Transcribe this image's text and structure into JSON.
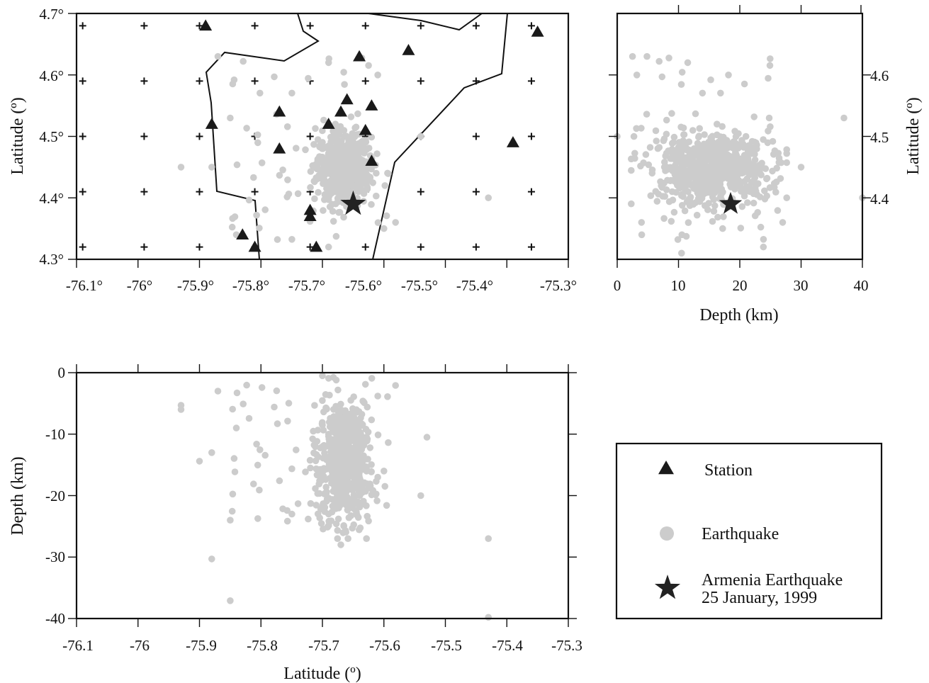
{
  "colors": {
    "quake": "#cccccc",
    "station": "#1a1a1a",
    "mainshock": "#222222",
    "line": "#111111"
  },
  "map_panel": {
    "x_ticks": [
      "-76.1°",
      "-76°",
      "-75.9°",
      "-75.8°",
      "-75.7°",
      "-75.6°",
      "-75.5°",
      "-75.4°",
      "-75.3°"
    ],
    "y_ticks": [
      "4.3°",
      "4.4°",
      "4.5°",
      "4.6°",
      "4.7°"
    ],
    "ylabel": "Latitude (º)"
  },
  "depth_lat_panel": {
    "x_ticks": [
      "0",
      "10",
      "20",
      "30",
      "40"
    ],
    "y_ticks": [
      "4.4",
      "4.5",
      "4.6"
    ],
    "xlabel": "Depth (km)",
    "ylabel": "Latitude (º)"
  },
  "lon_depth_panel": {
    "x_ticks": [
      "-76.1",
      "-76",
      "-75.9",
      "-75.8",
      "-75.7",
      "-75.6",
      "-75.5",
      "-75.4",
      "-75.3"
    ],
    "y_ticks": [
      "0",
      "-10",
      "-20",
      "-30",
      "-40"
    ],
    "xlabel": "Latitude (º)",
    "ylabel": "Depth (km)"
  },
  "legend": {
    "station": "Station",
    "earthquake": "Earthquake",
    "armenia_line1": "Armenia Earthquake",
    "armenia_line2": "25 January, 1999"
  },
  "chart_data": [
    {
      "type": "scatter",
      "panel": "map",
      "xlim": [
        -76.1,
        -75.3
      ],
      "ylim": [
        4.3,
        4.7
      ],
      "ylabel": "Latitude (º)",
      "series": [
        {
          "name": "Station",
          "marker": "triangle",
          "points": [
            [
              -75.89,
              4.68
            ],
            [
              -75.35,
              4.67
            ],
            [
              -75.64,
              4.63
            ],
            [
              -75.56,
              4.64
            ],
            [
              -75.66,
              4.56
            ],
            [
              -75.62,
              4.55
            ],
            [
              -75.77,
              4.54
            ],
            [
              -75.67,
              4.54
            ],
            [
              -75.88,
              4.52
            ],
            [
              -75.69,
              4.52
            ],
            [
              -75.63,
              4.51
            ],
            [
              -75.39,
              4.49
            ],
            [
              -75.77,
              4.48
            ],
            [
              -75.62,
              4.46
            ],
            [
              -75.72,
              4.38
            ],
            [
              -75.72,
              4.37
            ],
            [
              -75.83,
              4.34
            ],
            [
              -75.81,
              4.32
            ],
            [
              -75.71,
              4.32
            ]
          ]
        },
        {
          "name": "Earthquake",
          "marker": "circle",
          "n": 620,
          "extremes": [
            [
              -75.87,
              4.63
            ],
            [
              -75.69,
              4.62
            ],
            [
              -75.61,
              4.6
            ],
            [
              -75.85,
              4.53
            ],
            [
              -75.93,
              4.45
            ],
            [
              -75.88,
              4.45
            ],
            [
              -75.54,
              4.5
            ],
            [
              -75.43,
              4.4
            ],
            [
              -75.84,
              4.34
            ],
            [
              -75.6,
              4.35
            ],
            [
              -75.69,
              4.32
            ]
          ]
        },
        {
          "name": "Armenia Earthquake",
          "marker": "star",
          "points": [
            [
              -75.65,
              4.39
            ]
          ]
        }
      ]
    },
    {
      "type": "scatter",
      "panel": "depth-latitude",
      "xlim": [
        0,
        40
      ],
      "ylim": [
        4.31,
        4.7
      ],
      "xlabel": "Depth (km)",
      "ylabel": "Latitude (º)",
      "series": [
        {
          "name": "Earthquake",
          "marker": "circle",
          "n": 620,
          "extremes": [
            [
              2.5,
              4.63
            ],
            [
              3.2,
              4.6
            ],
            [
              0,
              4.5
            ],
            [
              37,
              4.53
            ],
            [
              40,
              4.4
            ],
            [
              30,
              4.45
            ],
            [
              27,
              4.36
            ],
            [
              10.5,
              4.31
            ],
            [
              4,
              4.34
            ]
          ]
        },
        {
          "name": "Armenia Earthquake",
          "marker": "star",
          "points": [
            [
              18.5,
              4.39
            ]
          ]
        }
      ]
    },
    {
      "type": "scatter",
      "panel": "longitude-depth",
      "xlim": [
        -76.1,
        -75.3
      ],
      "ylim": [
        -40,
        0
      ],
      "xlabel": "Latitude (º)",
      "ylabel": "Depth (km)",
      "series": [
        {
          "name": "Earthquake",
          "marker": "circle",
          "n": 620,
          "extremes": [
            [
              -75.93,
              -5.3
            ],
            [
              -75.9,
              -14.4
            ],
            [
              -75.88,
              -30.3
            ],
            [
              -75.85,
              -37.1
            ],
            [
              -75.53,
              -10.5
            ],
            [
              -75.43,
              -39.8
            ],
            [
              -75.7,
              -0.5
            ],
            [
              -75.61,
              -3.8
            ],
            [
              -75.67,
              -28
            ]
          ]
        }
      ]
    }
  ]
}
